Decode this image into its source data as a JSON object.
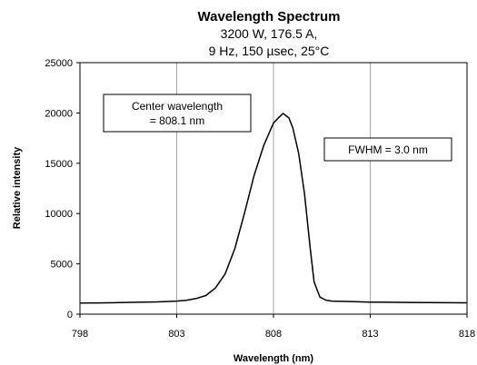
{
  "chart_data": {
    "type": "line",
    "title": "Wavelength Spectrum",
    "subtitle_lines": [
      "3200 W, 176.5 A,",
      "9 Hz, 150 µsec, 25°C"
    ],
    "xlabel": "Wavelength (nm)",
    "ylabel": "Relative intensity",
    "xlim": [
      798,
      818
    ],
    "ylim": [
      0,
      25000
    ],
    "x_ticks": [
      798,
      803,
      808,
      813,
      818
    ],
    "y_ticks": [
      0,
      5000,
      10000,
      15000,
      20000,
      25000
    ],
    "grid": "vertical",
    "series": [
      {
        "color": "#000000",
        "x": [
          798,
          799,
          800,
          801,
          802,
          803,
          803.5,
          804,
          804.5,
          805,
          805.5,
          806,
          806.5,
          807,
          807.5,
          808,
          808.3,
          808.5,
          808.8,
          809,
          809.3,
          809.6,
          809.9,
          810.1,
          810.4,
          810.7,
          811,
          812,
          813,
          814,
          815,
          816,
          817,
          818
        ],
        "y": [
          1100,
          1120,
          1150,
          1180,
          1220,
          1300,
          1380,
          1550,
          1850,
          2600,
          4000,
          6500,
          10000,
          13800,
          16800,
          19000,
          19600,
          19950,
          19500,
          18500,
          16000,
          12000,
          6500,
          3200,
          1700,
          1400,
          1300,
          1250,
          1200,
          1180,
          1160,
          1150,
          1140,
          1130
        ]
      }
    ],
    "annotations": [
      {
        "lines": [
          "Center wavelength",
          "= 808.1 nm"
        ]
      },
      {
        "lines": [
          "FWHM = 3.0 nm"
        ]
      }
    ]
  }
}
